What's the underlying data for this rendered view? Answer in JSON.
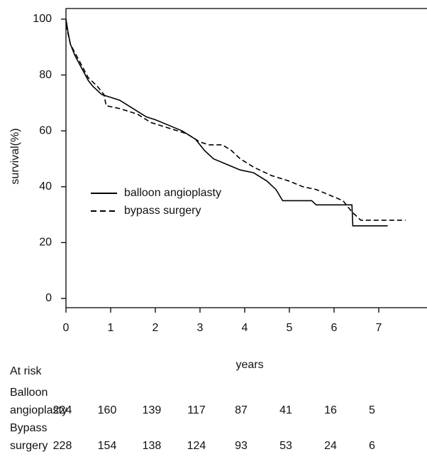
{
  "chart_data": {
    "type": "line",
    "y_label": "survival(%)",
    "x_label": "years",
    "xlim": [
      0,
      8.08
    ],
    "ylim": [
      -3.3,
      103.8
    ],
    "xticks": [
      0,
      1,
      2,
      3,
      4,
      5,
      6,
      7
    ],
    "yticks": [
      0,
      20,
      40,
      60,
      80,
      100
    ],
    "legend": "center-left",
    "series": [
      {
        "name": "balloon angioplasty",
        "color": "#000000",
        "dash": "solid",
        "x": [
          0,
          0.05,
          0.1,
          0.2,
          0.3,
          0.4,
          0.5,
          0.6,
          0.8,
          1,
          1.2,
          1.4,
          1.6,
          1.8,
          2,
          2.3,
          2.6,
          2.9,
          3.1,
          3.3,
          3.6,
          3.9,
          4.2,
          4.5,
          4.7,
          4.85,
          5.5,
          5.6,
          6.4,
          6.42,
          7.2
        ],
        "values": [
          100,
          95,
          91,
          87,
          84,
          81,
          78,
          76,
          73,
          72,
          71,
          69,
          67,
          65,
          64,
          62,
          60,
          57,
          53,
          50,
          48,
          46,
          45,
          42,
          39,
          35,
          35,
          33.5,
          33.5,
          26,
          26
        ]
      },
      {
        "name": "bypass surgery",
        "color": "#000000",
        "dash": "dashed",
        "x": [
          0,
          0.1,
          0.3,
          0.5,
          0.7,
          0.85,
          0.9,
          1.2,
          1.6,
          1.9,
          2.3,
          2.7,
          3.0,
          3.2,
          3.5,
          3.7,
          3.9,
          4.2,
          4.6,
          5,
          5.3,
          5.6,
          5.9,
          6.2,
          6.4,
          6.6,
          7.6
        ],
        "values": [
          98,
          91,
          85,
          79,
          76,
          73,
          69,
          68,
          66,
          63,
          61,
          59,
          56,
          55,
          55,
          53,
          50,
          47,
          44,
          42,
          40,
          39,
          37,
          35,
          31,
          28,
          28
        ]
      }
    ]
  },
  "at_risk": {
    "title": "At risk",
    "rows": [
      {
        "label_lines": [
          "Balloon",
          "angioplasty"
        ],
        "counts": [
          224,
          160,
          139,
          117,
          87,
          41,
          16,
          5
        ]
      },
      {
        "label_lines": [
          "Bypass",
          "surgery"
        ],
        "counts": [
          228,
          154,
          138,
          124,
          93,
          53,
          24,
          6
        ]
      }
    ]
  }
}
